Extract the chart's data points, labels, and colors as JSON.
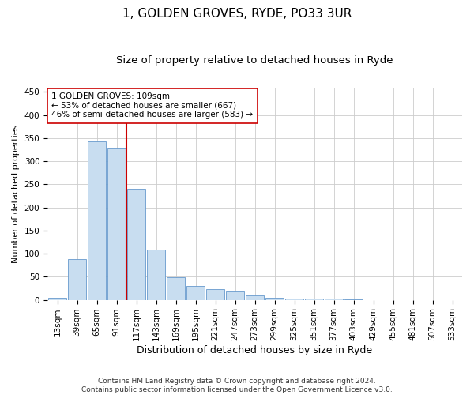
{
  "title": "1, GOLDEN GROVES, RYDE, PO33 3UR",
  "subtitle": "Size of property relative to detached houses in Ryde",
  "xlabel": "Distribution of detached houses by size in Ryde",
  "ylabel": "Number of detached properties",
  "bar_labels": [
    "13sqm",
    "39sqm",
    "65sqm",
    "91sqm",
    "117sqm",
    "143sqm",
    "169sqm",
    "195sqm",
    "221sqm",
    "247sqm",
    "273sqm",
    "299sqm",
    "325sqm",
    "351sqm",
    "377sqm",
    "403sqm",
    "429sqm",
    "455sqm",
    "481sqm",
    "507sqm",
    "533sqm"
  ],
  "bar_values": [
    5,
    88,
    343,
    330,
    241,
    108,
    49,
    30,
    24,
    19,
    9,
    5,
    3,
    3,
    2,
    1,
    0,
    0,
    0,
    0,
    0
  ],
  "bar_color": "#c8ddf0",
  "bar_edge_color": "#6699cc",
  "vline_color": "#cc0000",
  "vline_index": 3.5,
  "annotation_text": "1 GOLDEN GROVES: 109sqm\n← 53% of detached houses are smaller (667)\n46% of semi-detached houses are larger (583) →",
  "annotation_box_color": "#ffffff",
  "annotation_box_edge": "#cc0000",
  "ylim": [
    0,
    460
  ],
  "yticks": [
    0,
    50,
    100,
    150,
    200,
    250,
    300,
    350,
    400,
    450
  ],
  "footer": "Contains HM Land Registry data © Crown copyright and database right 2024.\nContains public sector information licensed under the Open Government Licence v3.0.",
  "title_fontsize": 11,
  "subtitle_fontsize": 9.5,
  "xlabel_fontsize": 9,
  "ylabel_fontsize": 8,
  "tick_fontsize": 7.5,
  "annotation_fontsize": 7.5,
  "footer_fontsize": 6.5
}
